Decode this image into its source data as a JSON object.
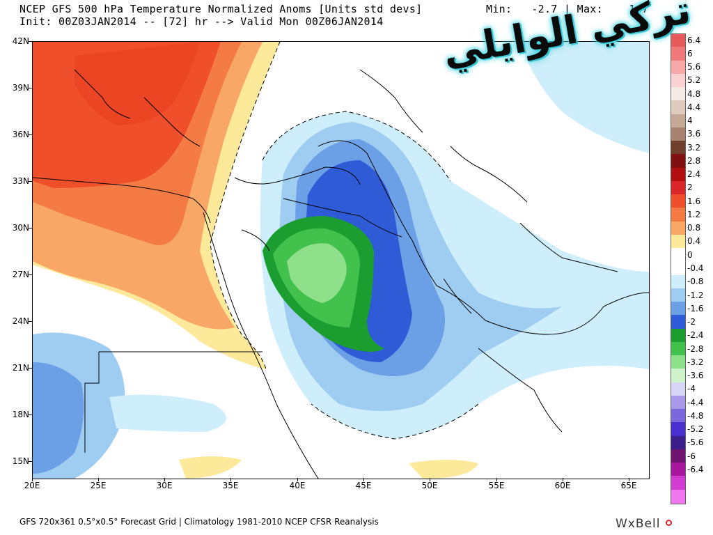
{
  "header": {
    "title": "NCEP GFS 500 hPa Temperature Normalized Anoms [Units std devs]",
    "minmax": "Min:   -2.7 | Max:    1.7",
    "init": "Init: 00Z03JAN2014 -- [72] hr --> Valid Mon 00Z06JAN2014"
  },
  "overlay_text": "تركي الوايلي",
  "footer": {
    "text": "GFS 720x361 0.5°x0.5° Forecast Grid | Climatology 1981-2010 NCEP CFSR Reanalysis",
    "brand": "WxBell"
  },
  "axes": {
    "lat_labels": [
      "42N",
      "39N",
      "36N",
      "33N",
      "30N",
      "27N",
      "24N",
      "21N",
      "18N",
      "15N"
    ],
    "lon_labels": [
      "20E",
      "25E",
      "30E",
      "35E",
      "40E",
      "45E",
      "50E",
      "55E",
      "60E",
      "65E"
    ],
    "lat_range": [
      14,
      42
    ],
    "lon_range": [
      20,
      66.5
    ]
  },
  "colorbar": [
    {
      "label": "6.4",
      "color": "#e55b5b"
    },
    {
      "label": "6",
      "color": "#f07a7a"
    },
    {
      "label": "5.6",
      "color": "#f7a9a9"
    },
    {
      "label": "5.2",
      "color": "#fbd2d2"
    },
    {
      "label": "4.8",
      "color": "#f4ebe6"
    },
    {
      "label": "4.4",
      "color": "#dfcbbe"
    },
    {
      "label": "4",
      "color": "#c6a896"
    },
    {
      "label": "3.6",
      "color": "#a88470"
    },
    {
      "label": "3.2",
      "color": "#6f3f2c"
    },
    {
      "label": "2.8",
      "color": "#7f1111"
    },
    {
      "label": "2.4",
      "color": "#b20f12"
    },
    {
      "label": "2",
      "color": "#d8262a"
    },
    {
      "label": "1.6",
      "color": "#ef4f2a"
    },
    {
      "label": "1.2",
      "color": "#f47c44"
    },
    {
      "label": "0.8",
      "color": "#f8a766"
    },
    {
      "label": "0.4",
      "color": "#fde99a"
    },
    {
      "label": "0",
      "color": "#ffffff"
    },
    {
      "label": "-0.4",
      "color": "#ffffff"
    },
    {
      "label": "-0.8",
      "color": "#cdeefa"
    },
    {
      "label": "-1.2",
      "color": "#9fcdf2"
    },
    {
      "label": "-1.6",
      "color": "#6b9fe6"
    },
    {
      "label": "-2",
      "color": "#2f5cd6"
    },
    {
      "label": "-2.4",
      "color": "#1b9e2f"
    },
    {
      "label": "-2.8",
      "color": "#42c24c"
    },
    {
      "label": "-3.2",
      "color": "#8fe08b"
    },
    {
      "label": "-3.6",
      "color": "#cef2c9"
    },
    {
      "label": "-4",
      "color": "#d9d5f6"
    },
    {
      "label": "-4.4",
      "color": "#a99ae8"
    },
    {
      "label": "-4.8",
      "color": "#7c68dd"
    },
    {
      "label": "-5.2",
      "color": "#4a2fcf"
    },
    {
      "label": "-5.6",
      "color": "#3a1f8a"
    },
    {
      "label": "-6",
      "color": "#6f1370"
    },
    {
      "label": "-6.4",
      "color": "#a7189f"
    },
    {
      "label": "",
      "color": "#d23cd0"
    },
    {
      "label": "",
      "color": "#f078ee"
    }
  ]
}
